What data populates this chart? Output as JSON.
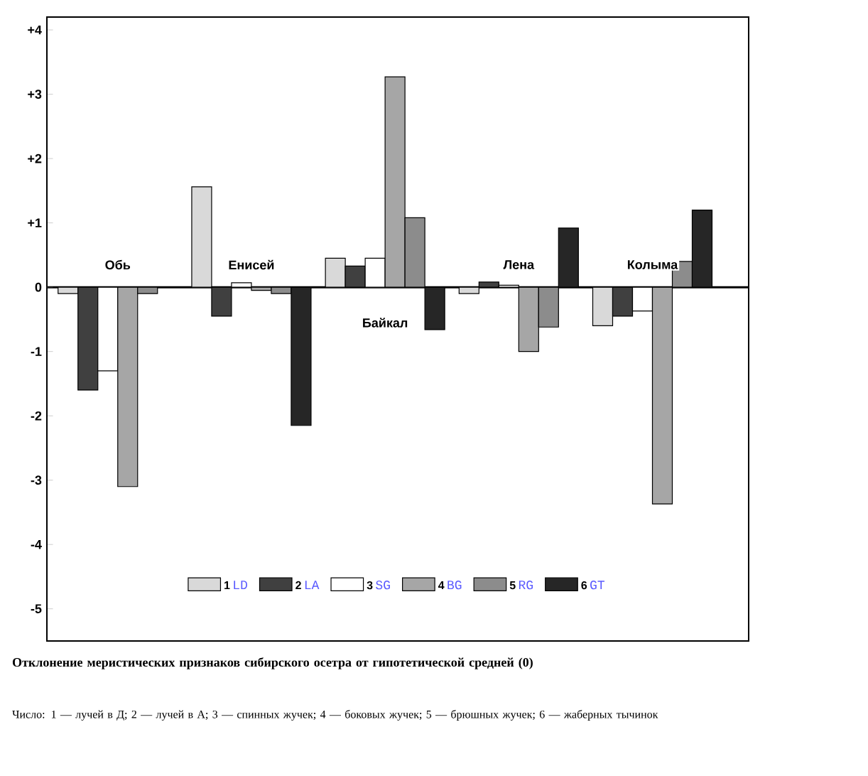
{
  "chart_data": {
    "type": "bar",
    "title": "Отклонение меристических признаков сибирского осетра от гипотетической средней (0)",
    "subtitle": "Число: 1 — лучей в Д; 2 — лучей в А; 3 — спинных жучек; 4 — боковых жучек; 5 — брюшных жучек; 6 — жаберных тычинок",
    "categories": [
      "Обь",
      "Енисей",
      "Байкал",
      "Лена",
      "Колыма"
    ],
    "series": [
      {
        "name": "LD",
        "color": "#d9d9d9",
        "values": [
          -0.1,
          1.56,
          0.45,
          -0.1,
          -0.6
        ]
      },
      {
        "name": "LA",
        "color": "#404040",
        "values": [
          -1.6,
          -0.45,
          0.33,
          0.08,
          -0.45
        ]
      },
      {
        "name": "SG",
        "color": "#ffffff",
        "values": [
          -1.3,
          0.07,
          0.45,
          0.03,
          -0.37
        ]
      },
      {
        "name": "BG",
        "color": "#a6a6a6",
        "values": [
          -3.1,
          -0.05,
          3.27,
          -1.0,
          -3.37
        ]
      },
      {
        "name": "RG",
        "color": "#8c8c8c",
        "values": [
          -0.1,
          -0.1,
          1.08,
          -0.62,
          0.4
        ]
      },
      {
        "name": "GT",
        "color": "#262626",
        "values": [
          null,
          -2.15,
          -0.66,
          0.92,
          1.2
        ]
      }
    ],
    "annotations": [
      "1",
      "2",
      "3",
      "4",
      "5",
      "6"
    ],
    "ylim": [
      -5.5,
      4.2
    ],
    "yticks": [
      -5,
      -4,
      -3,
      -2,
      -1,
      0,
      {
        "value": 1,
        "label": "+1"
      },
      {
        "value": 2,
        "label": "+2"
      },
      {
        "value": 3,
        "label": "+3"
      },
      {
        "value": 4,
        "label": "+4"
      }
    ],
    "legend": "bottom",
    "grid": false
  }
}
